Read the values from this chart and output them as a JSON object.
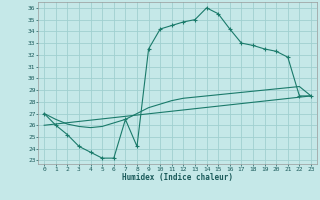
{
  "xlabel": "Humidex (Indice chaleur)",
  "bg_color": "#c5e8e8",
  "grid_color": "#a0d0d0",
  "line_color": "#1a7a6a",
  "xlim_min": -0.5,
  "xlim_max": 23.5,
  "ylim_min": 22.7,
  "ylim_max": 36.5,
  "xtick_vals": [
    0,
    1,
    2,
    3,
    4,
    5,
    6,
    7,
    8,
    9,
    10,
    11,
    12,
    13,
    14,
    15,
    16,
    17,
    18,
    19,
    20,
    21,
    22,
    23
  ],
  "ytick_vals": [
    23,
    24,
    25,
    26,
    27,
    28,
    29,
    30,
    31,
    32,
    33,
    34,
    35,
    36
  ],
  "main_x": [
    0,
    1,
    2,
    3,
    4,
    5,
    6,
    7,
    8,
    9,
    10,
    11,
    12,
    13,
    14,
    15,
    16,
    17,
    18,
    19,
    20,
    21,
    22,
    23
  ],
  "main_y": [
    27,
    26,
    25.2,
    24.2,
    23.7,
    23.2,
    23.2,
    26.5,
    24.2,
    32.5,
    34.2,
    34.5,
    34.8,
    35.0,
    36.0,
    35.5,
    34.2,
    33.0,
    32.8,
    32.5,
    32.3,
    31.8,
    28.5,
    28.5
  ],
  "line2_x": [
    0,
    1,
    2,
    3,
    4,
    5,
    6,
    7,
    8,
    9,
    10,
    11,
    12,
    13,
    14,
    15,
    16,
    17,
    18,
    19,
    20,
    21,
    22,
    23
  ],
  "line2_y": [
    27,
    26.5,
    26.1,
    25.9,
    25.8,
    25.9,
    26.2,
    26.5,
    27.0,
    27.5,
    27.8,
    28.1,
    28.3,
    28.4,
    28.5,
    28.6,
    28.7,
    28.8,
    28.9,
    29.0,
    29.1,
    29.2,
    29.3,
    28.5
  ],
  "line3_x": [
    0,
    23
  ],
  "line3_y": [
    26.0,
    28.5
  ]
}
